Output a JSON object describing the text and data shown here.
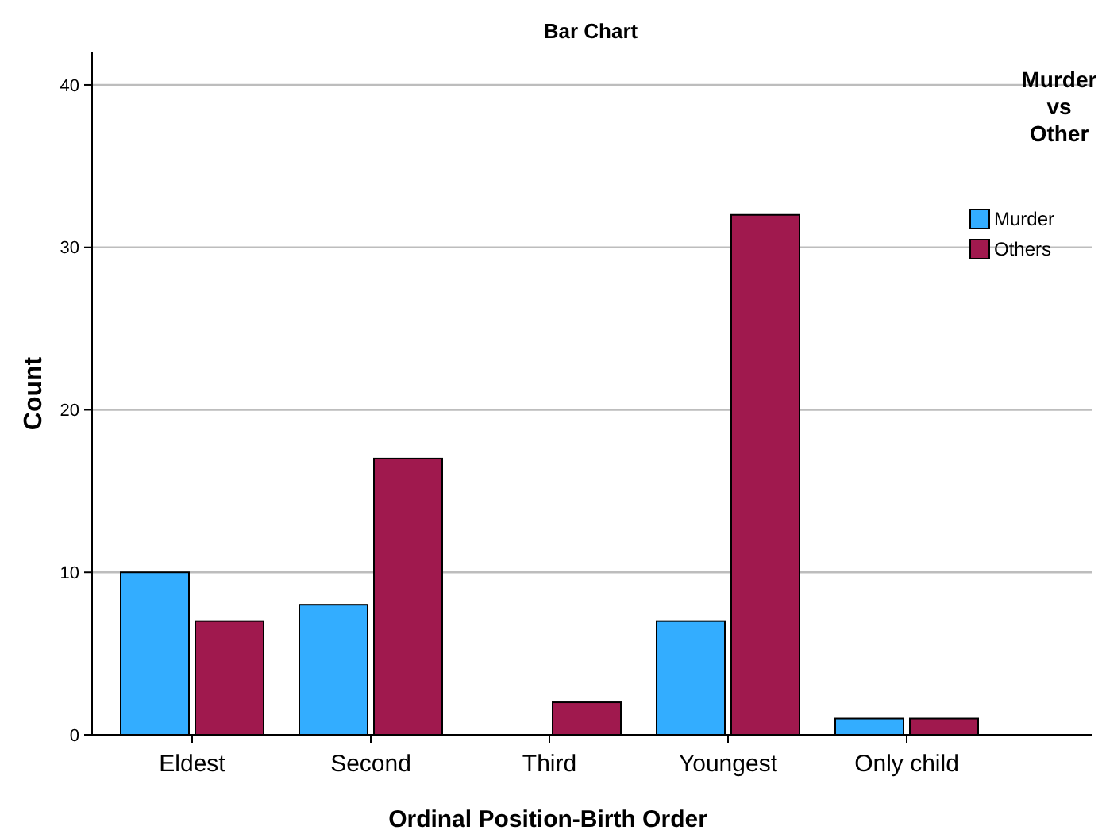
{
  "chart_data": {
    "type": "bar",
    "title": "Bar Chart",
    "xlabel": "Ordinal Position-Birth Order",
    "ylabel": "Count",
    "legend_title": "Murder vs Other",
    "categories": [
      "Eldest",
      "Second",
      "Third",
      "Youngest",
      "Only child"
    ],
    "series": [
      {
        "name": "Murder",
        "color": "#33adff",
        "values": [
          10,
          8,
          0,
          7,
          1
        ]
      },
      {
        "name": "Others",
        "color": "#a0194e",
        "values": [
          7,
          17,
          2,
          32,
          1
        ]
      }
    ],
    "ylim": [
      0,
      42
    ],
    "yticks": [
      0,
      10,
      20,
      30,
      40
    ],
    "grid": "y",
    "legend": "top right"
  }
}
